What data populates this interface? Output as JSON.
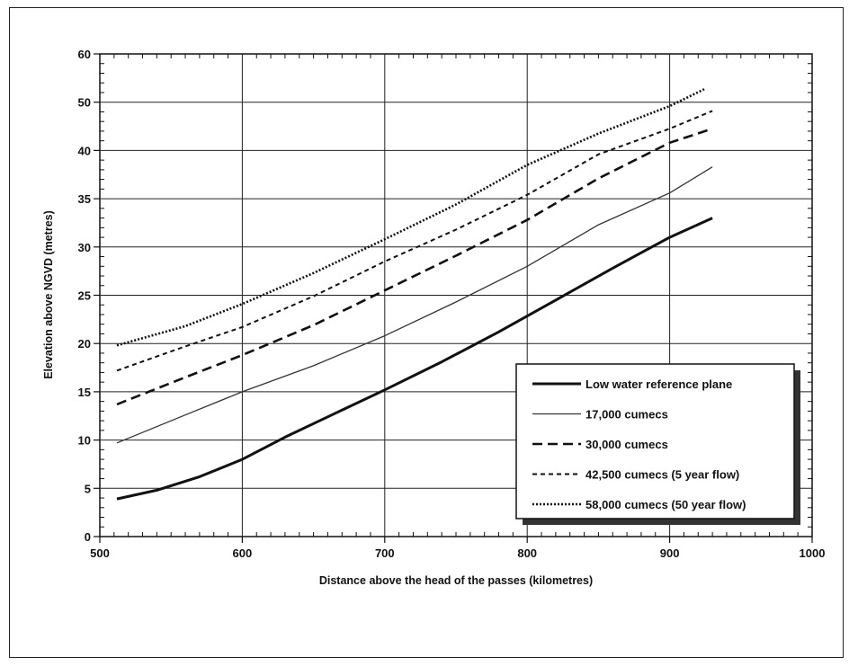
{
  "chart_data": {
    "type": "line",
    "title": "",
    "xlabel": "Distance above the head of the passes (kilometres)",
    "ylabel": "Elevation above NGVD (metres)",
    "xlim": [
      500,
      1000
    ],
    "x_ticks": [
      500,
      600,
      700,
      800,
      900,
      1000
    ],
    "x_tick_labels": [
      "500",
      "600",
      "700",
      "800",
      "900",
      "1000"
    ],
    "y_ticks": [
      0,
      5,
      10,
      15,
      20,
      25,
      30,
      35,
      40,
      50,
      60
    ],
    "y_tick_labels": [
      "0",
      "5",
      "10",
      "15",
      "20",
      "25",
      "30",
      "35",
      "40",
      "50",
      "60"
    ],
    "grid": true,
    "legend_position": "bottom-right",
    "series": [
      {
        "name": "Low water reference plane",
        "style": "solid-thick",
        "color": "#111111",
        "x": [
          512,
          540,
          570,
          600,
          630,
          660,
          700,
          740,
          780,
          820,
          860,
          880,
          900,
          930
        ],
        "y": [
          3.9,
          4.8,
          6.2,
          8.0,
          10.3,
          12.4,
          15.2,
          18.1,
          21.2,
          24.5,
          27.8,
          29.4,
          31.0,
          33.0
        ]
      },
      {
        "name": "17,000 cumecs",
        "style": "solid-thin",
        "color": "#333333",
        "x": [
          512,
          560,
          600,
          650,
          700,
          750,
          800,
          850,
          900,
          930
        ],
        "y": [
          9.7,
          12.6,
          15.0,
          17.7,
          20.8,
          24.3,
          28.0,
          32.3,
          35.6,
          38.3
        ]
      },
      {
        "name": "30,000 cumecs",
        "style": "dashed",
        "color": "#111111",
        "x": [
          512,
          560,
          600,
          650,
          700,
          750,
          800,
          850,
          900,
          930
        ],
        "y": [
          13.7,
          16.5,
          18.8,
          21.9,
          25.5,
          29.1,
          32.8,
          37.1,
          41.6,
          44.5
        ]
      },
      {
        "name": "42,500 cumecs (5 year flow)",
        "style": "dashed-short",
        "color": "#111111",
        "x": [
          512,
          560,
          600,
          650,
          700,
          750,
          800,
          850,
          900,
          930
        ],
        "y": [
          17.2,
          19.7,
          21.7,
          24.9,
          28.5,
          31.8,
          35.4,
          39.6,
          44.5,
          48.2
        ]
      },
      {
        "name": "58,000 cumecs (50 year flow)",
        "style": "dotted",
        "color": "#111111",
        "x": [
          512,
          560,
          600,
          650,
          700,
          750,
          800,
          850,
          900,
          925
        ],
        "y": [
          19.8,
          21.8,
          24.1,
          27.3,
          30.8,
          34.4,
          38.5,
          43.5,
          49.2,
          52.8
        ]
      }
    ]
  }
}
